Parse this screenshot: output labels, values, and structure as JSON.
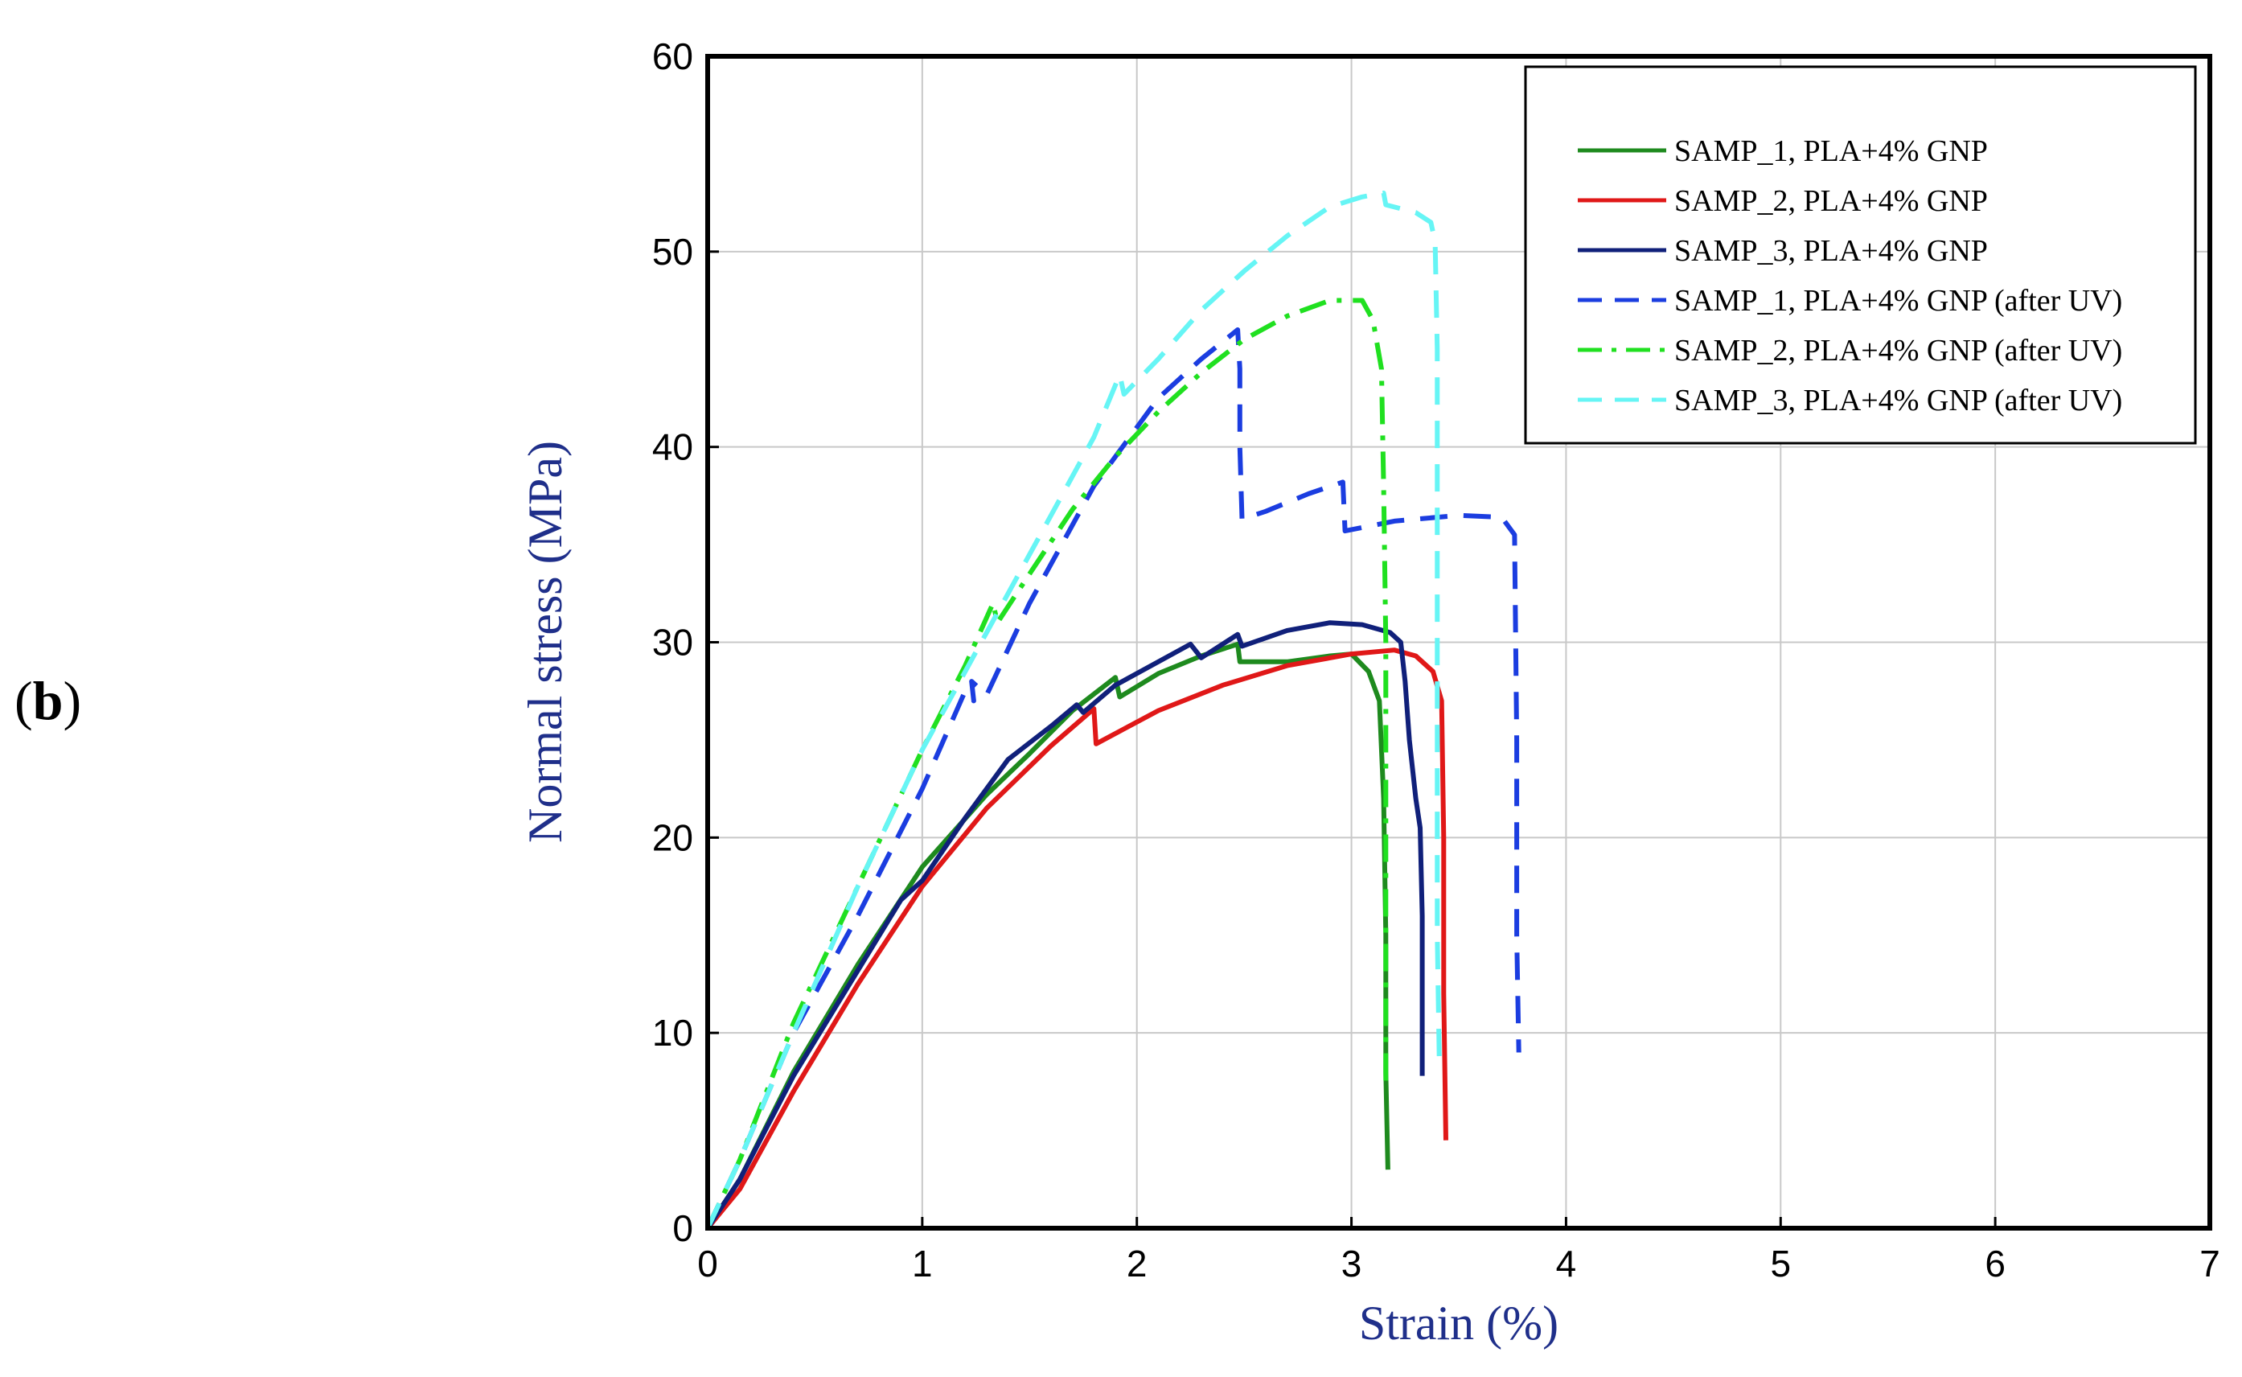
{
  "panel_label": "b",
  "chart_data": {
    "type": "line",
    "title": "",
    "xlabel": "Strain (%)",
    "ylabel": "Normal stress (MPa)",
    "xlim": [
      0,
      7
    ],
    "ylim": [
      0,
      60
    ],
    "xticks": [
      0,
      1,
      2,
      3,
      4,
      5,
      6,
      7
    ],
    "yticks": [
      0,
      10,
      20,
      30,
      40,
      50,
      60
    ],
    "grid": true,
    "legend_position": "top-right",
    "series": [
      {
        "name": "SAMP_1, PLA+4% GNP",
        "color": "#1e8a1e",
        "dash": "solid",
        "points": [
          [
            0,
            0
          ],
          [
            0.15,
            2.5
          ],
          [
            0.4,
            8
          ],
          [
            0.7,
            13.5
          ],
          [
            1.0,
            18.5
          ],
          [
            1.3,
            22.2
          ],
          [
            1.5,
            24.3
          ],
          [
            1.7,
            26.5
          ],
          [
            1.9,
            28.2
          ],
          [
            1.92,
            27.2
          ],
          [
            2.1,
            28.4
          ],
          [
            2.3,
            29.3
          ],
          [
            2.47,
            29.9
          ],
          [
            2.48,
            29.0
          ],
          [
            2.7,
            29.0
          ],
          [
            2.9,
            29.3
          ],
          [
            3.0,
            29.4
          ],
          [
            3.08,
            28.5
          ],
          [
            3.13,
            27.0
          ],
          [
            3.15,
            22.0
          ],
          [
            3.16,
            15.0
          ],
          [
            3.16,
            8.0
          ],
          [
            3.17,
            3.0
          ]
        ]
      },
      {
        "name": "SAMP_2, PLA+4% GNP",
        "color": "#e01818",
        "dash": "solid",
        "points": [
          [
            0,
            0
          ],
          [
            0.15,
            2.0
          ],
          [
            0.4,
            7.0
          ],
          [
            0.7,
            12.5
          ],
          [
            1.0,
            17.5
          ],
          [
            1.3,
            21.5
          ],
          [
            1.6,
            24.7
          ],
          [
            1.8,
            26.6
          ],
          [
            1.81,
            24.8
          ],
          [
            2.1,
            26.5
          ],
          [
            2.4,
            27.8
          ],
          [
            2.7,
            28.8
          ],
          [
            3.0,
            29.4
          ],
          [
            3.2,
            29.6
          ],
          [
            3.3,
            29.3
          ],
          [
            3.38,
            28.5
          ],
          [
            3.42,
            27.0
          ],
          [
            3.43,
            20.0
          ],
          [
            3.43,
            12.0
          ],
          [
            3.44,
            4.5
          ]
        ]
      },
      {
        "name": "SAMP_3, PLA+4% GNP",
        "color": "#10207a",
        "dash": "solid",
        "points": [
          [
            0,
            0
          ],
          [
            0.15,
            2.5
          ],
          [
            0.4,
            7.8
          ],
          [
            0.7,
            13.2
          ],
          [
            0.9,
            16.8
          ],
          [
            1.0,
            17.8
          ],
          [
            1.2,
            21.0
          ],
          [
            1.4,
            24.0
          ],
          [
            1.6,
            25.7
          ],
          [
            1.72,
            26.8
          ],
          [
            1.75,
            26.4
          ],
          [
            1.9,
            27.8
          ],
          [
            2.1,
            29.0
          ],
          [
            2.25,
            29.9
          ],
          [
            2.3,
            29.2
          ],
          [
            2.47,
            30.4
          ],
          [
            2.49,
            29.8
          ],
          [
            2.7,
            30.6
          ],
          [
            2.9,
            31.0
          ],
          [
            3.05,
            30.9
          ],
          [
            3.18,
            30.5
          ],
          [
            3.23,
            30.0
          ],
          [
            3.25,
            28.0
          ],
          [
            3.27,
            25.0
          ],
          [
            3.3,
            22.0
          ],
          [
            3.32,
            20.5
          ],
          [
            3.33,
            16.0
          ],
          [
            3.33,
            10.0
          ],
          [
            3.33,
            7.8
          ]
        ]
      },
      {
        "name": "SAMP_1, PLA+4% GNP (after UV)",
        "color": "#1b3de0",
        "dash": "dash",
        "points": [
          [
            0,
            0
          ],
          [
            0.15,
            3.5
          ],
          [
            0.4,
            10.0
          ],
          [
            0.7,
            16.0
          ],
          [
            1.0,
            22.5
          ],
          [
            1.2,
            27.5
          ],
          [
            1.24,
            27.0
          ],
          [
            1.23,
            28.0
          ],
          [
            1.3,
            27.3
          ],
          [
            1.5,
            32.0
          ],
          [
            1.8,
            38.0
          ],
          [
            2.1,
            42.5
          ],
          [
            2.3,
            44.5
          ],
          [
            2.47,
            46.0
          ],
          [
            2.48,
            44.0
          ],
          [
            2.48,
            40.0
          ],
          [
            2.49,
            36.3
          ],
          [
            2.6,
            36.7
          ],
          [
            2.8,
            37.6
          ],
          [
            2.96,
            38.2
          ],
          [
            2.97,
            35.7
          ],
          [
            3.2,
            36.2
          ],
          [
            3.5,
            36.5
          ],
          [
            3.7,
            36.4
          ],
          [
            3.76,
            35.5
          ],
          [
            3.77,
            25.0
          ],
          [
            3.77,
            15.0
          ],
          [
            3.78,
            9.0
          ]
        ]
      },
      {
        "name": "SAMP_2, PLA+4% GNP (after UV)",
        "color": "#20e020",
        "dash": "dashdot",
        "points": [
          [
            0,
            0
          ],
          [
            0.15,
            3.5
          ],
          [
            0.4,
            10.5
          ],
          [
            0.7,
            17.5
          ],
          [
            1.0,
            24.5
          ],
          [
            1.2,
            28.8
          ],
          [
            1.33,
            32.0
          ],
          [
            1.35,
            31.0
          ],
          [
            1.5,
            33.5
          ],
          [
            1.7,
            36.8
          ],
          [
            1.9,
            39.5
          ],
          [
            2.1,
            41.8
          ],
          [
            2.3,
            43.8
          ],
          [
            2.5,
            45.5
          ],
          [
            2.7,
            46.7
          ],
          [
            2.9,
            47.5
          ],
          [
            3.05,
            47.5
          ],
          [
            3.1,
            46.5
          ],
          [
            3.14,
            44.0
          ],
          [
            3.15,
            38.0
          ],
          [
            3.16,
            30.0
          ],
          [
            3.16,
            20.0
          ],
          [
            3.16,
            12.0
          ],
          [
            3.16,
            7.5
          ]
        ]
      },
      {
        "name": "SAMP_3, PLA+4% GNP (after UV)",
        "color": "#66f5f5",
        "dash": "dash",
        "points": [
          [
            0,
            0
          ],
          [
            0.15,
            3.5
          ],
          [
            0.4,
            10.0
          ],
          [
            0.7,
            17.5
          ],
          [
            1.0,
            24.5
          ],
          [
            1.3,
            30.5
          ],
          [
            1.6,
            36.5
          ],
          [
            1.8,
            40.5
          ],
          [
            1.92,
            43.7
          ],
          [
            1.94,
            42.7
          ],
          [
            2.1,
            44.5
          ],
          [
            2.3,
            47.0
          ],
          [
            2.5,
            49.0
          ],
          [
            2.7,
            50.8
          ],
          [
            2.9,
            52.3
          ],
          [
            3.05,
            52.8
          ],
          [
            3.15,
            53.0
          ],
          [
            3.16,
            52.4
          ],
          [
            3.3,
            52.0
          ],
          [
            3.37,
            51.5
          ],
          [
            3.39,
            50.5
          ],
          [
            3.4,
            45.0
          ],
          [
            3.4,
            35.0
          ],
          [
            3.4,
            25.0
          ],
          [
            3.4,
            15.0
          ],
          [
            3.41,
            8.0
          ]
        ]
      }
    ]
  }
}
